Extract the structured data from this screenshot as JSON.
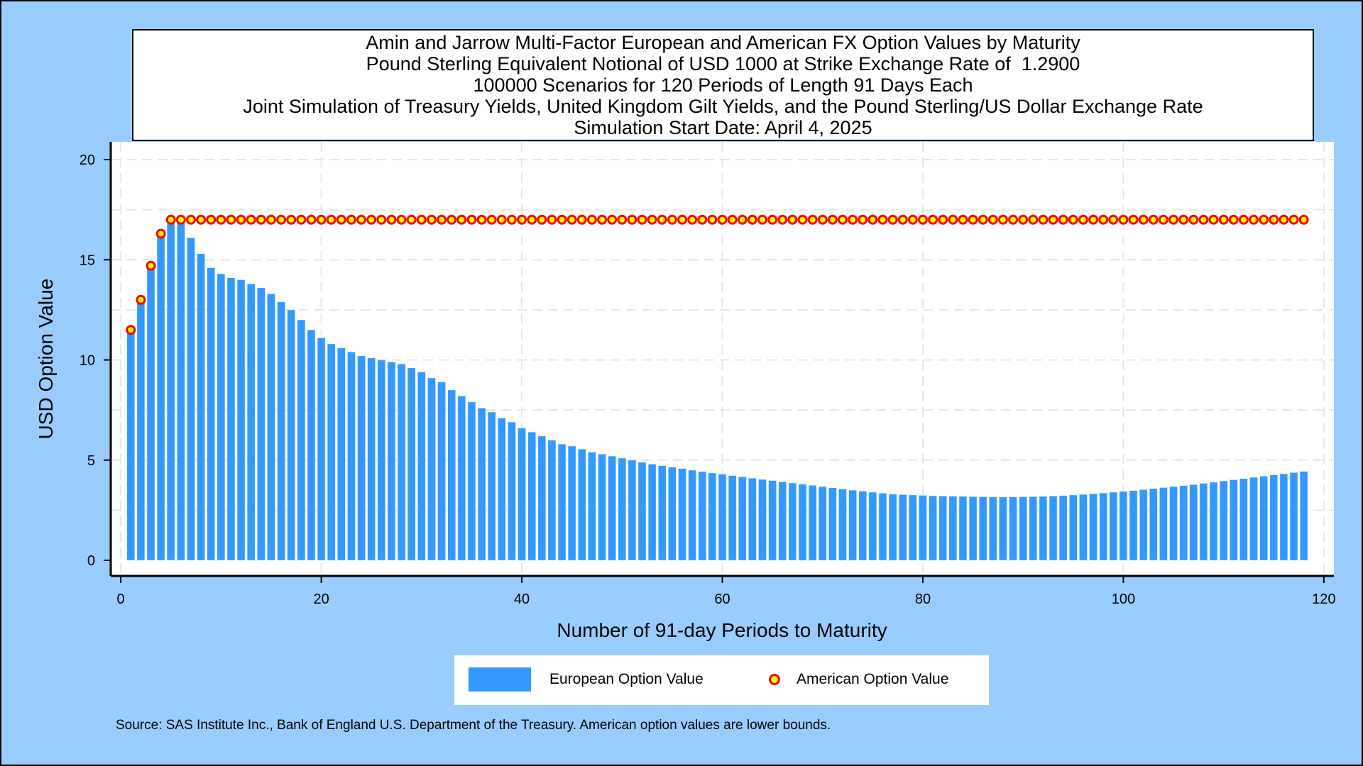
{
  "chart_data": {
    "type": "bar",
    "title_lines": [
      "Amin and Jarrow Multi-Factor European and American FX Option Values by Maturity",
      "Pound Sterling Equivalent Notional of USD 1000 at Strike Exchange Rate of  1.2900",
      "100000 Scenarios for 120 Periods of Length 91 Days Each",
      "Joint Simulation of Treasury Yields, United Kingdom Gilt Yields, and the Pound Sterling/US Dollar Exchange Rate",
      "Simulation Start Date: April 4, 2025"
    ],
    "xlabel": "Number of 91-day Periods to Maturity",
    "ylabel": "USD Option Value",
    "xlim": [
      -1,
      121
    ],
    "ylim": [
      0,
      20.6
    ],
    "xticks": [
      0,
      20,
      40,
      60,
      80,
      100,
      120
    ],
    "yticks": [
      0,
      5,
      10,
      15,
      20
    ],
    "grid": true,
    "legend_position": "bottom",
    "x": [
      1,
      2,
      3,
      4,
      5,
      6,
      7,
      8,
      9,
      10,
      11,
      12,
      13,
      14,
      15,
      16,
      17,
      18,
      19,
      20,
      21,
      22,
      23,
      24,
      25,
      26,
      27,
      28,
      29,
      30,
      31,
      32,
      33,
      34,
      35,
      36,
      37,
      38,
      39,
      40,
      41,
      42,
      43,
      44,
      45,
      46,
      47,
      48,
      49,
      50,
      51,
      52,
      53,
      54,
      55,
      56,
      57,
      58,
      59,
      60,
      61,
      62,
      63,
      64,
      65,
      66,
      67,
      68,
      69,
      70,
      71,
      72,
      73,
      74,
      75,
      76,
      77,
      78,
      79,
      80,
      81,
      82,
      83,
      84,
      85,
      86,
      87,
      88,
      89,
      90,
      91,
      92,
      93,
      94,
      95,
      96,
      97,
      98,
      99,
      100,
      101,
      102,
      103,
      104,
      105,
      106,
      107,
      108,
      109,
      110,
      111,
      112,
      113,
      114,
      115,
      116,
      117,
      118
    ],
    "series": [
      {
        "name": "European Option Value",
        "color": "#3399ff",
        "values": [
          11.5,
          13.0,
          14.7,
          16.3,
          17.0,
          17.0,
          16.1,
          15.3,
          14.6,
          14.3,
          14.1,
          14.0,
          13.8,
          13.6,
          13.3,
          12.9,
          12.5,
          12.0,
          11.5,
          11.1,
          10.8,
          10.6,
          10.4,
          10.2,
          10.1,
          10.0,
          9.9,
          9.8,
          9.6,
          9.4,
          9.1,
          8.9,
          8.5,
          8.2,
          7.9,
          7.6,
          7.4,
          7.1,
          6.9,
          6.6,
          6.4,
          6.2,
          6.0,
          5.8,
          5.7,
          5.55,
          5.4,
          5.3,
          5.2,
          5.1,
          5.0,
          4.9,
          4.8,
          4.72,
          4.65,
          4.58,
          4.5,
          4.43,
          4.36,
          4.3,
          4.23,
          4.17,
          4.1,
          4.04,
          3.98,
          3.92,
          3.86,
          3.8,
          3.74,
          3.68,
          3.62,
          3.56,
          3.5,
          3.45,
          3.4,
          3.35,
          3.3,
          3.28,
          3.26,
          3.24,
          3.22,
          3.21,
          3.2,
          3.19,
          3.18,
          3.17,
          3.16,
          3.16,
          3.16,
          3.17,
          3.18,
          3.19,
          3.21,
          3.23,
          3.26,
          3.29,
          3.32,
          3.36,
          3.4,
          3.44,
          3.48,
          3.53,
          3.58,
          3.63,
          3.68,
          3.73,
          3.78,
          3.84,
          3.9,
          3.96,
          4.02,
          4.08,
          4.14,
          4.2,
          4.26,
          4.32,
          4.38,
          4.44
        ]
      },
      {
        "name": "American Option Value",
        "marker_fill": "#ffff00",
        "marker_edge": "#ff0000",
        "values": [
          11.5,
          13.0,
          14.7,
          16.3,
          17.0,
          17.0,
          17.0,
          17.0,
          17.0,
          17.0,
          17.0,
          17.0,
          17.0,
          17.0,
          17.0,
          17.0,
          17.0,
          17.0,
          17.0,
          17.0,
          17.0,
          17.0,
          17.0,
          17.0,
          17.0,
          17.0,
          17.0,
          17.0,
          17.0,
          17.0,
          17.0,
          17.0,
          17.0,
          17.0,
          17.0,
          17.0,
          17.0,
          17.0,
          17.0,
          17.0,
          17.0,
          17.0,
          17.0,
          17.0,
          17.0,
          17.0,
          17.0,
          17.0,
          17.0,
          17.0,
          17.0,
          17.0,
          17.0,
          17.0,
          17.0,
          17.0,
          17.0,
          17.0,
          17.0,
          17.0,
          17.0,
          17.0,
          17.0,
          17.0,
          17.0,
          17.0,
          17.0,
          17.0,
          17.0,
          17.0,
          17.0,
          17.0,
          17.0,
          17.0,
          17.0,
          17.0,
          17.0,
          17.0,
          17.0,
          17.0,
          17.0,
          17.0,
          17.0,
          17.0,
          17.0,
          17.0,
          17.0,
          17.0,
          17.0,
          17.0,
          17.0,
          17.0,
          17.0,
          17.0,
          17.0,
          17.0,
          17.0,
          17.0,
          17.0,
          17.0,
          17.0,
          17.0,
          17.0,
          17.0,
          17.0,
          17.0,
          17.0,
          17.0,
          17.0,
          17.0,
          17.0,
          17.0,
          17.0,
          17.0,
          17.0,
          17.0,
          17.0,
          17.0
        ]
      }
    ],
    "source": "Source: SAS Institute Inc., Bank of England U.S. Department of the Treasury. American option values are lower bounds."
  }
}
